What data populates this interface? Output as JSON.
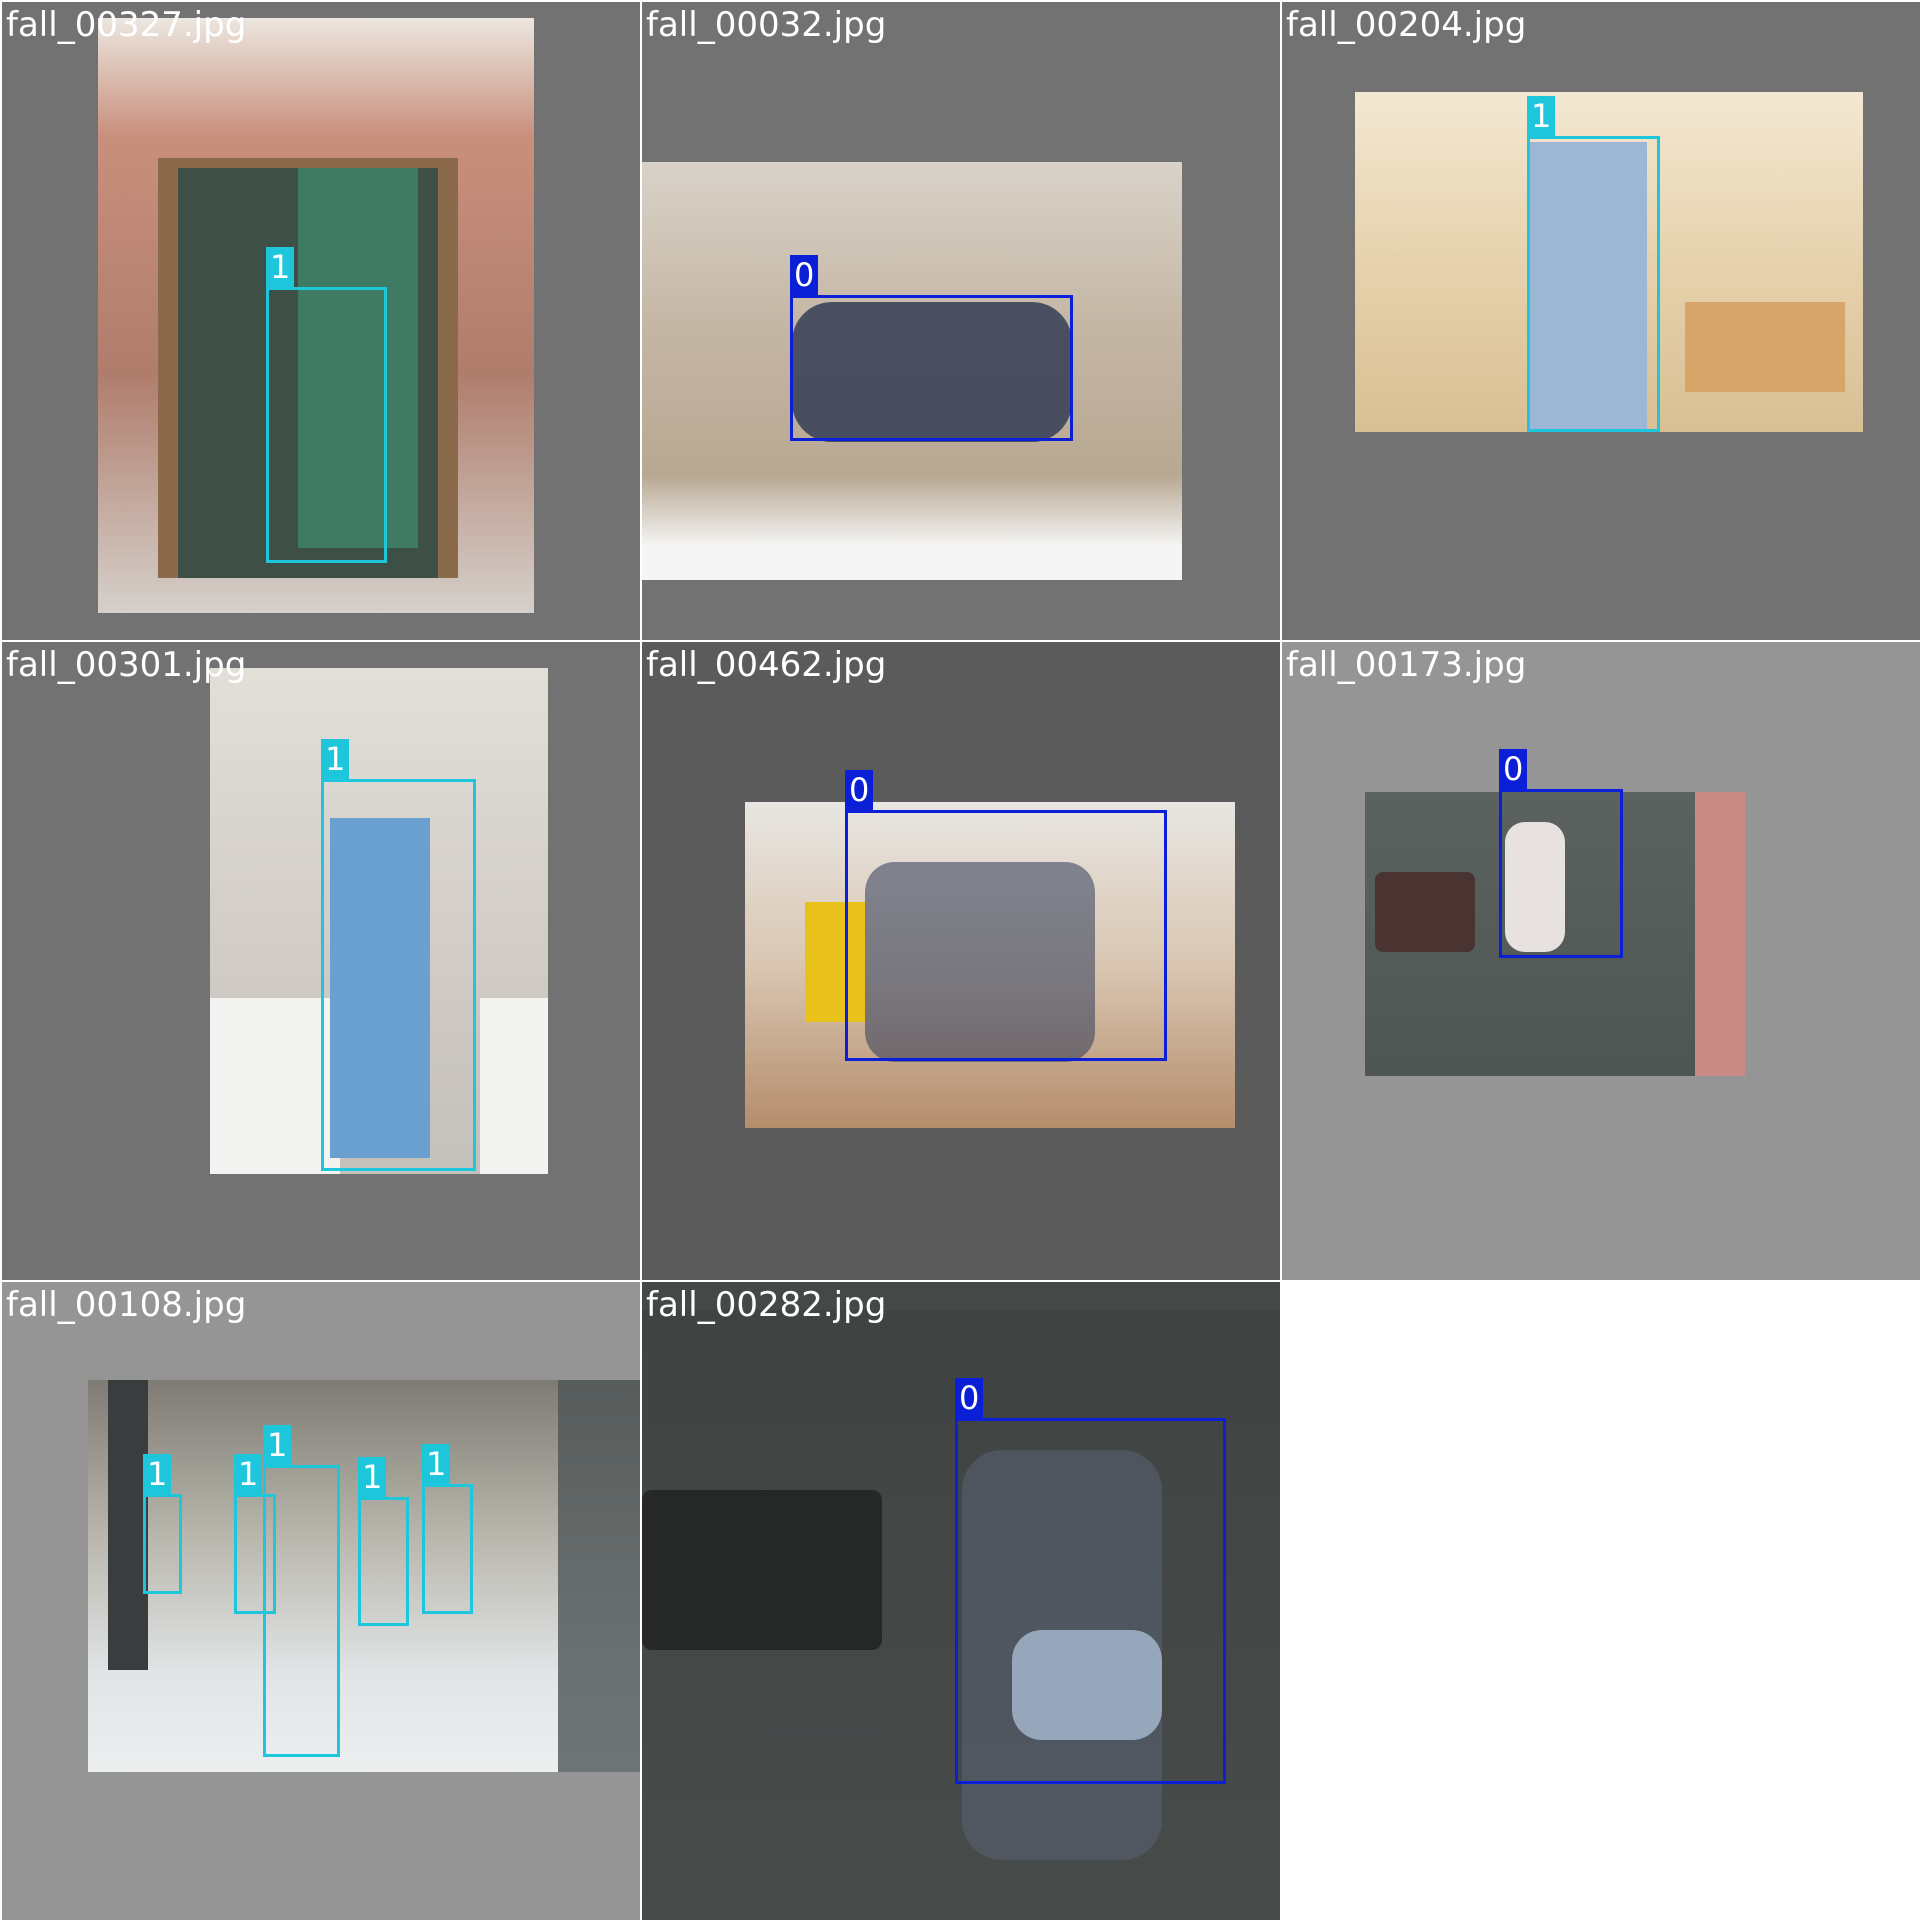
{
  "colors": {
    "class_0": "#0a1fd6",
    "class_1": "#1ec6db",
    "page": "#ffffff"
  },
  "tiles": [
    {
      "filename": "fall_00327.jpg",
      "boxes": [
        {
          "class": "1"
        }
      ]
    },
    {
      "filename": "fall_00032.jpg",
      "boxes": [
        {
          "class": "0"
        }
      ]
    },
    {
      "filename": "fall_00204.jpg",
      "boxes": [
        {
          "class": "1"
        }
      ]
    },
    {
      "filename": "fall_00301.jpg",
      "boxes": [
        {
          "class": "1"
        }
      ]
    },
    {
      "filename": "fall_00462.jpg",
      "boxes": [
        {
          "class": "0"
        }
      ]
    },
    {
      "filename": "fall_00173.jpg",
      "boxes": [
        {
          "class": "0"
        }
      ]
    },
    {
      "filename": "fall_00108.jpg",
      "boxes": [
        {
          "class": "1"
        },
        {
          "class": "1"
        },
        {
          "class": "1"
        },
        {
          "class": "1"
        },
        {
          "class": "1"
        }
      ]
    },
    {
      "filename": "fall_00282.jpg",
      "boxes": [
        {
          "class": "0"
        }
      ]
    }
  ]
}
